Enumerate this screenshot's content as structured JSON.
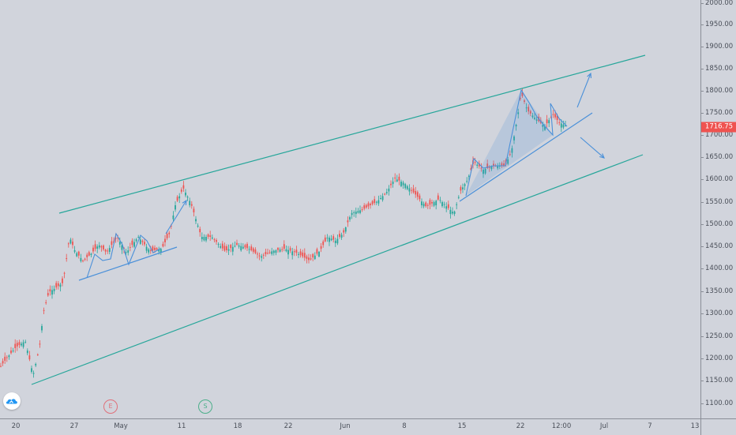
{
  "colors": {
    "background": "#d1d4dc",
    "candle_up": "#26a69a",
    "candle_down": "#ef5350",
    "channel": "#26a69a",
    "pattern": "#4a90d9",
    "last_price_bg": "#ef5350"
  },
  "price_axis": {
    "ticks": [
      "2000.00",
      "1950.00",
      "1900.00",
      "1850.00",
      "1800.00",
      "1750.00",
      "1700.00",
      "1650.00",
      "1600.00",
      "1550.00",
      "1500.00",
      "1450.00",
      "1400.00",
      "1350.00",
      "1300.00",
      "1250.00",
      "1200.00",
      "1150.00",
      "1100.00"
    ],
    "last_price": "1716.75"
  },
  "time_axis": {
    "ticks": [
      "20",
      "27",
      "May",
      "11",
      "18",
      "22",
      "Jun",
      "8",
      "15",
      "22",
      "12:00",
      "Jul",
      "7",
      "13"
    ]
  },
  "markers": {
    "earnings": "E",
    "split": "S"
  },
  "logo": {
    "icon": "cloud-logo-icon"
  }
}
